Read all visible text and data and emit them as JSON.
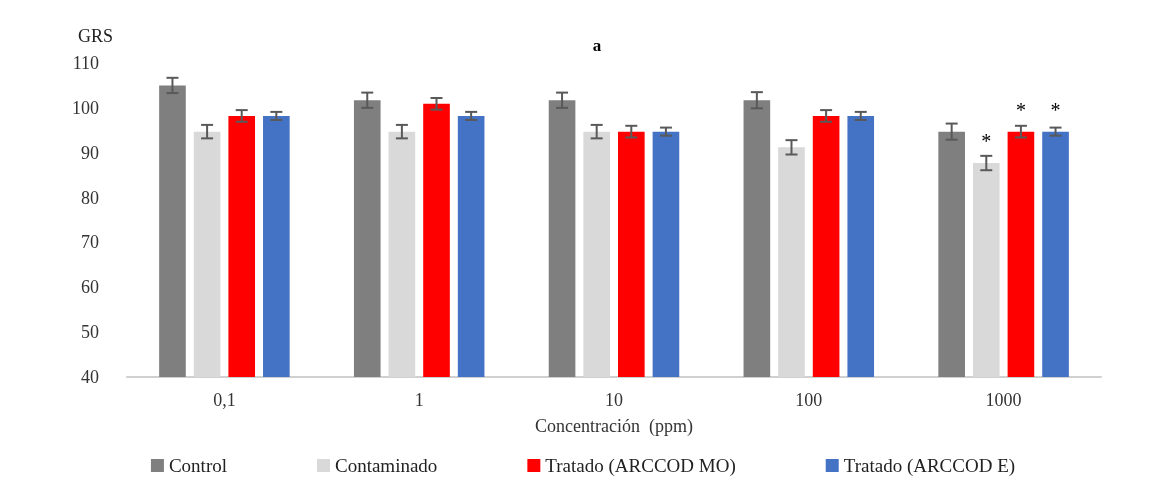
{
  "chart_data": {
    "type": "bar",
    "title": "a",
    "xlabel": "Concentración  (ppm)",
    "ylabel": "GRS",
    "categories": [
      "0,1",
      "1",
      "10",
      "100",
      "1000"
    ],
    "series": [
      {
        "name": "Control",
        "color": "#7f7f7f",
        "values": [
          105.0,
          101.7,
          101.7,
          101.7,
          94.7
        ],
        "errors": [
          1.7,
          1.7,
          1.7,
          1.8,
          1.8
        ]
      },
      {
        "name": "Contaminado",
        "color": "#d9d9d9",
        "values": [
          94.7,
          94.7,
          94.7,
          91.2,
          87.7
        ],
        "errors": [
          1.5,
          1.5,
          1.5,
          1.6,
          1.6
        ],
        "value_labels": [
          null,
          null,
          null,
          null,
          "*"
        ]
      },
      {
        "name": "Tratado (ARCCOD MO)",
        "color": "#ff0000",
        "values": [
          98.2,
          100.9,
          94.7,
          98.2,
          94.7
        ],
        "errors": [
          1.3,
          1.3,
          1.3,
          1.3,
          1.3
        ],
        "value_labels": [
          null,
          null,
          null,
          null,
          "*"
        ]
      },
      {
        "name": "Tratado (ARCCOD E)",
        "color": "#4472c4",
        "values": [
          98.2,
          98.2,
          94.7,
          98.2,
          94.7
        ],
        "errors": [
          0.9,
          0.9,
          0.9,
          0.9,
          0.9
        ],
        "value_labels": [
          null,
          null,
          null,
          null,
          "*"
        ]
      }
    ],
    "ylim": [
      40,
      110
    ],
    "yticks": [
      40,
      50,
      60,
      70,
      80,
      90,
      100,
      110
    ],
    "grid": false,
    "legend": "bottom"
  }
}
